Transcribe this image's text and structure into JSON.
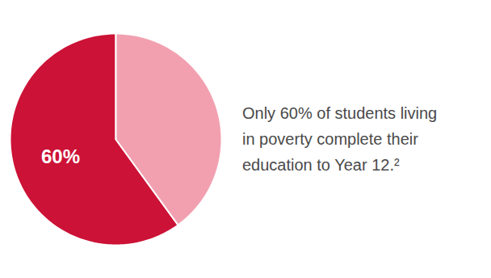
{
  "chart_data": {
    "type": "pie",
    "values": [
      60,
      40
    ],
    "colors": [
      "#CC1236",
      "#F2A0B0"
    ],
    "value_labels": [
      "60%",
      null
    ],
    "annotations": [
      "Only 60% of students living",
      "in poverty complete their",
      "education to Year 12.²"
    ]
  }
}
